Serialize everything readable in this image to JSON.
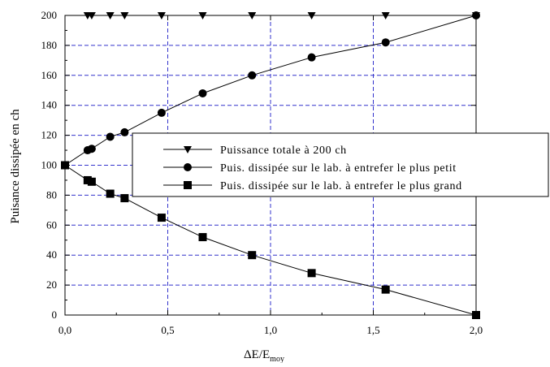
{
  "chart_data": {
    "type": "line",
    "title": "",
    "xlabel": "ΔE/E",
    "xlabel_subscript": "moy",
    "ylabel": "Puisance dissipée en ch",
    "xlim": [
      0,
      2.0
    ],
    "ylim": [
      0,
      200
    ],
    "x_ticks": [
      0,
      0.5,
      1.0,
      1.5,
      2.0
    ],
    "x_tick_labels": [
      "0,0",
      "0,5",
      "1,0",
      "1,5",
      "2,0"
    ],
    "y_ticks": [
      0,
      20,
      40,
      60,
      80,
      100,
      120,
      140,
      160,
      180,
      200
    ],
    "y_tick_labels": [
      "0",
      "20",
      "40",
      "60",
      "80",
      "100",
      "120",
      "140",
      "160",
      "180",
      "200"
    ],
    "grid": true,
    "legend_position": "center-right",
    "series": [
      {
        "name": "Puissance totale à 200 ch",
        "marker": "triangle-down",
        "x": [
          0.11,
          0.13,
          0.22,
          0.29,
          0.47,
          0.67,
          0.91,
          1.2,
          1.56,
          2.0
        ],
        "y": [
          200,
          200,
          200,
          200,
          200,
          200,
          200,
          200,
          200,
          200
        ]
      },
      {
        "name": "Puis. dissipée sur le lab. à entrefer le plus petit",
        "marker": "circle",
        "x": [
          0.0,
          0.11,
          0.13,
          0.22,
          0.29,
          0.47,
          0.67,
          0.91,
          1.2,
          1.56,
          2.0
        ],
        "y": [
          100,
          110,
          111,
          119,
          122,
          135,
          148,
          160,
          172,
          182,
          200
        ]
      },
      {
        "name": "Puis. dissipée sur le lab. à entrefer le plus grand",
        "marker": "square",
        "x": [
          0.0,
          0.11,
          0.13,
          0.22,
          0.29,
          0.47,
          0.67,
          0.91,
          1.2,
          1.56,
          2.0
        ],
        "y": [
          100,
          90,
          89,
          81,
          78,
          65,
          52,
          40,
          28,
          17,
          0
        ]
      }
    ]
  },
  "colors": {
    "grid": "#3333cc",
    "line": "#000000",
    "background": "#ffffff"
  }
}
